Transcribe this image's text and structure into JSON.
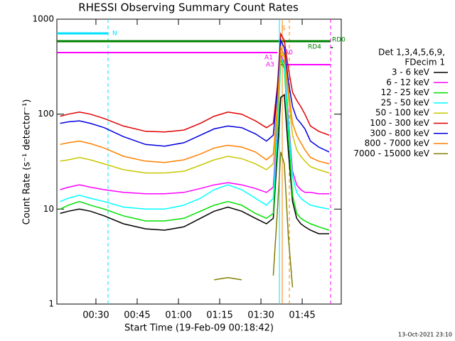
{
  "chart_data": {
    "type": "line",
    "title": "RHESSI Observing Summary Count Rates",
    "x_label": "Start Time (19-Feb-09 00:18:42)",
    "y_label": "Count Rate (s⁻¹ detector⁻¹)",
    "log_y": true,
    "xlim": [
      15.8,
      119.2
    ],
    "xticks": [
      {
        "value": 30,
        "label": "00:30"
      },
      {
        "value": 45,
        "label": "00:45"
      },
      {
        "value": 60,
        "label": "01:00"
      },
      {
        "value": 75,
        "label": "01:15"
      },
      {
        "value": 90,
        "label": "01:30"
      },
      {
        "value": 105,
        "label": "01:45"
      }
    ],
    "ylim": [
      1,
      1000
    ],
    "yticks": [
      1,
      10,
      100,
      1000
    ],
    "legend_title": [
      "Det 1,3,4,5,6,9,",
      "FDecim 1"
    ],
    "legend_position": "right",
    "x": [
      17,
      20,
      24,
      28,
      33,
      40,
      48,
      55,
      62,
      68,
      73,
      78,
      83,
      88,
      92,
      94.5,
      96,
      97.2,
      98.5,
      100,
      101.5,
      103,
      104.5,
      106,
      108,
      111,
      114.8
    ],
    "series": [
      {
        "name": "3 - 6 keV",
        "color": "#000000",
        "values": [
          9,
          9.5,
          10,
          9.5,
          8.5,
          7,
          6.2,
          6,
          6.5,
          8,
          9.5,
          10.5,
          9.5,
          8,
          7,
          8,
          40,
          150,
          160,
          40,
          12,
          8,
          7,
          6.5,
          6,
          5.5,
          5.5
        ]
      },
      {
        "name": "6 - 12 keV",
        "color": "#ff00ff",
        "values": [
          16,
          17,
          18,
          17,
          16,
          15,
          14.5,
          14.5,
          15,
          16.5,
          18,
          19,
          18,
          16.5,
          15,
          17,
          80,
          420,
          350,
          90,
          25,
          18,
          16,
          15,
          15,
          14.5,
          14.5
        ]
      },
      {
        "name": "12 - 25 keV",
        "color": "#00e000",
        "values": [
          10,
          11,
          12,
          11,
          10,
          8.5,
          7.5,
          7.5,
          8,
          9.5,
          11,
          12,
          11,
          9,
          8,
          9,
          60,
          380,
          300,
          60,
          14,
          9,
          8,
          7.5,
          7,
          6.5,
          6
        ]
      },
      {
        "name": "25 - 50 keV",
        "color": "#00ffff",
        "values": [
          12,
          13,
          14,
          13,
          12,
          10.5,
          10,
          10,
          11,
          13,
          16,
          18,
          16,
          13,
          11,
          13,
          70,
          400,
          330,
          80,
          22,
          15,
          13,
          12,
          11,
          10.5,
          10
        ]
      },
      {
        "name": "50 - 100 keV",
        "color": "#c8c800",
        "values": [
          32,
          33,
          35,
          33,
          30,
          26,
          24,
          24,
          25,
          29,
          33,
          36,
          34,
          30,
          26,
          30,
          100,
          450,
          400,
          150,
          60,
          42,
          36,
          32,
          28,
          26,
          24
        ]
      },
      {
        "name": "100 - 300 keV",
        "color": "#e00000",
        "values": [
          95,
          100,
          105,
          100,
          90,
          75,
          66,
          65,
          68,
          80,
          95,
          105,
          100,
          85,
          72,
          80,
          200,
          700,
          600,
          300,
          170,
          140,
          120,
          100,
          75,
          66,
          60
        ]
      },
      {
        "name": "300 - 800 keV",
        "color": "#0000e0",
        "values": [
          80,
          83,
          85,
          80,
          72,
          58,
          48,
          46,
          50,
          60,
          70,
          75,
          72,
          62,
          52,
          60,
          180,
          600,
          500,
          220,
          120,
          90,
          80,
          70,
          52,
          45,
          40
        ]
      },
      {
        "name": "800 - 7000 keV",
        "color": "#ff8000",
        "values": [
          48,
          50,
          52,
          49,
          44,
          36,
          32,
          31,
          33,
          38,
          44,
          47,
          45,
          40,
          33,
          38,
          130,
          500,
          420,
          180,
          80,
          60,
          50,
          42,
          35,
          32,
          30
        ]
      },
      {
        "name": "7000 - 15000 keV",
        "color": "#808000",
        "values": [
          null,
          null,
          null,
          null,
          null,
          null,
          null,
          null,
          null,
          null,
          1.8,
          1.9,
          1.8,
          null,
          null,
          2,
          10,
          40,
          30,
          5,
          1.5,
          null,
          null,
          null,
          null,
          null,
          null
        ]
      }
    ],
    "annotations": [
      {
        "text": "N",
        "color": "#00e0ff"
      },
      {
        "text": "S",
        "color": "#ff8000"
      },
      {
        "text": "RD0",
        "color": "#008000"
      },
      {
        "text": "RD4",
        "color": "#008000"
      },
      {
        "text": "A1",
        "color": "#ff00ff"
      },
      {
        "text": "A0",
        "color": "#ff00ff"
      },
      {
        "text": "A3",
        "color": "#ff00ff"
      }
    ],
    "footer": "13-Oct-2021 23:10"
  }
}
